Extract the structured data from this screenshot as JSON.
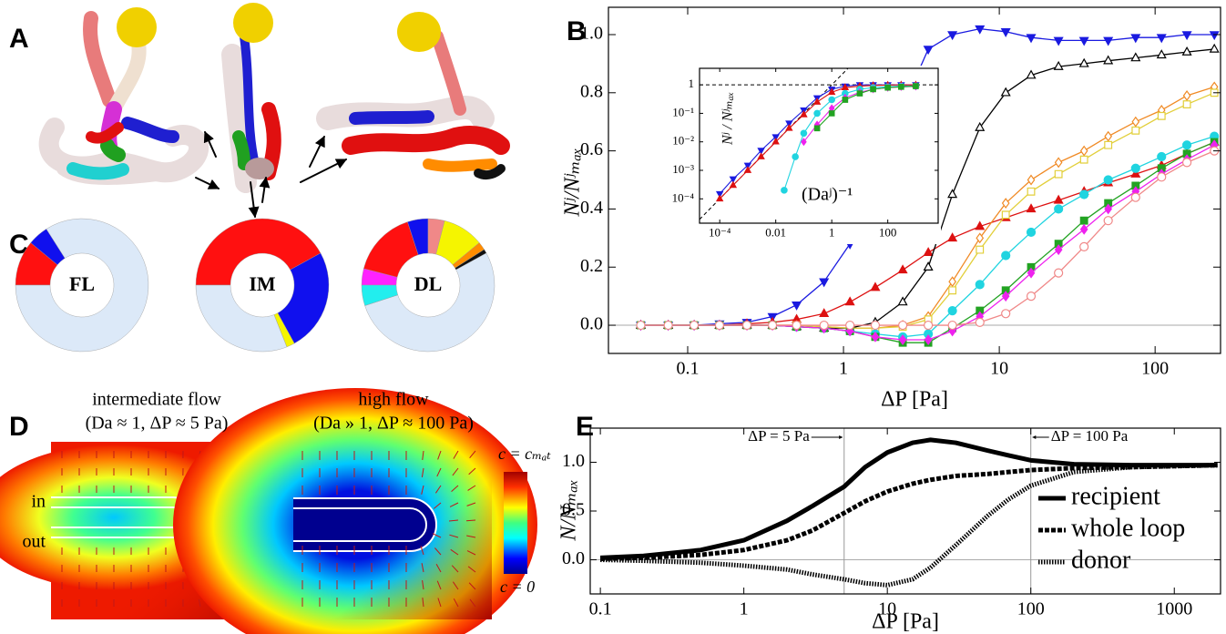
{
  "panel_labels": [
    "A",
    "B",
    "C",
    "D",
    "E"
  ],
  "chart_data": [
    {
      "type": "line",
      "xlabel": "ΔP [Pa]",
      "ylabel": "Nʲ/Nʲₘₐₓ",
      "xlog": true,
      "xlim": [
        0.031,
        263
      ],
      "xticks": [
        0.1,
        1,
        10,
        100
      ],
      "ylim": [
        -0.097,
        1.094
      ],
      "yticks": [
        {
          "value": 0,
          "label": "0.0"
        },
        {
          "value": 0.2,
          "label": "0.2"
        },
        {
          "value": 0.4,
          "label": "0.4"
        },
        {
          "value": 0.6,
          "label": "0.6"
        },
        {
          "value": 0.8,
          "label": "0.8"
        },
        {
          "value": 1,
          "label": "1.0"
        }
      ],
      "zero_line": true,
      "x": [
        0.05,
        0.075,
        0.11,
        0.16,
        0.24,
        0.35,
        0.5,
        0.75,
        1.1,
        1.6,
        2.4,
        3.5,
        5,
        7.5,
        11,
        16,
        24,
        35,
        50,
        75,
        110,
        160,
        240
      ],
      "series": [
        {
          "color": "#1a1ae0",
          "marker": "tri-down",
          "filled": true,
          "values": [
            0,
            0,
            0,
            0.005,
            0.01,
            0.03,
            0.07,
            0.15,
            0.28,
            0.5,
            0.75,
            0.95,
            1.0,
            1.02,
            1.01,
            0.99,
            0.98,
            0.98,
            0.98,
            0.99,
            0.99,
            1.0,
            1.0
          ]
        },
        {
          "color": "#dd1111",
          "marker": "tri-up",
          "filled": true,
          "values": [
            0,
            0,
            0,
            0,
            0.005,
            0.01,
            0.02,
            0.04,
            0.08,
            0.13,
            0.19,
            0.25,
            0.3,
            0.34,
            0.37,
            0.4,
            0.43,
            0.46,
            0.49,
            0.52,
            0.55,
            0.59,
            0.63
          ]
        },
        {
          "color": "#000000",
          "marker": "tri-up",
          "filled": false,
          "values": [
            0,
            0,
            0,
            0,
            0,
            0,
            -0.005,
            -0.01,
            -0.01,
            0.01,
            0.08,
            0.2,
            0.45,
            0.68,
            0.8,
            0.86,
            0.89,
            0.9,
            0.91,
            0.92,
            0.93,
            0.94,
            0.95
          ]
        },
        {
          "color": "#f08a24",
          "marker": "diamond",
          "filled": false,
          "values": [
            0,
            0,
            0,
            0,
            0,
            0,
            0,
            -0.005,
            -0.01,
            -0.01,
            0,
            0.03,
            0.15,
            0.3,
            0.42,
            0.5,
            0.56,
            0.6,
            0.65,
            0.7,
            0.74,
            0.79,
            0.82
          ]
        },
        {
          "color": "#e2cf3a",
          "marker": "square",
          "filled": false,
          "values": [
            0,
            0,
            0,
            0,
            0,
            0,
            0,
            -0.005,
            -0.01,
            -0.01,
            -0.005,
            0.02,
            0.12,
            0.26,
            0.38,
            0.46,
            0.52,
            0.57,
            0.62,
            0.67,
            0.72,
            0.76,
            0.8
          ]
        },
        {
          "color": "#20d4e0",
          "marker": "circle",
          "filled": true,
          "values": [
            0,
            0,
            0,
            0,
            0,
            0,
            -0.005,
            -0.01,
            -0.02,
            -0.03,
            -0.04,
            -0.03,
            0.05,
            0.14,
            0.24,
            0.32,
            0.4,
            0.45,
            0.5,
            0.54,
            0.58,
            0.62,
            0.65
          ]
        },
        {
          "color": "#22a322",
          "marker": "square",
          "filled": true,
          "values": [
            0,
            0,
            0,
            0,
            0,
            0,
            -0.005,
            -0.01,
            -0.02,
            -0.04,
            -0.06,
            -0.06,
            -0.01,
            0.05,
            0.12,
            0.2,
            0.28,
            0.36,
            0.42,
            0.48,
            0.54,
            0.59,
            0.63
          ]
        },
        {
          "color": "#ee22ee",
          "marker": "diamond",
          "filled": true,
          "values": [
            0,
            0,
            0,
            0,
            0,
            0,
            -0.005,
            -0.01,
            -0.02,
            -0.04,
            -0.05,
            -0.05,
            -0.02,
            0.03,
            0.1,
            0.18,
            0.26,
            0.33,
            0.4,
            0.46,
            0.52,
            0.57,
            0.62
          ]
        },
        {
          "color": "#f08888",
          "marker": "circle",
          "filled": false,
          "values": [
            0,
            0,
            0,
            0,
            0,
            0,
            0,
            0,
            0,
            0,
            0,
            0,
            0,
            0.01,
            0.04,
            0.1,
            0.18,
            0.27,
            0.36,
            0.44,
            0.51,
            0.56,
            0.6
          ]
        }
      ]
    },
    {
      "type": "line",
      "ylabel": "Nʲ / Nʲₘₐₓ",
      "annotation": "(Daʲ)⁻¹",
      "xlog": true,
      "ylog": true,
      "xlim": [
        1.9e-05,
        6300
      ],
      "xticks": [
        {
          "value": 0.0001,
          "label": "10⁻⁴"
        },
        0.01,
        1,
        100
      ],
      "ylim": [
        1.4e-05,
        3.8
      ],
      "yticks": [
        {
          "value": 0.0001,
          "label": "10⁻⁴"
        },
        {
          "value": 0.001,
          "label": "10⁻³"
        },
        {
          "value": 0.01,
          "label": "10⁻²"
        },
        {
          "value": 0.1,
          "label": "10⁻¹"
        },
        1
      ],
      "top_tick_dashed": true,
      "unity_diagonal": true,
      "series": [
        {
          "color": "#1a1ae0",
          "marker": "tri-down",
          "filled": true,
          "x": [
            0.0001,
            0.0003,
            0.001,
            0.003,
            0.01,
            0.03,
            0.1,
            0.3,
            1,
            3,
            10,
            30,
            100,
            300,
            1000
          ],
          "values": [
            0.00015,
            0.0005,
            0.0015,
            0.005,
            0.015,
            0.045,
            0.13,
            0.35,
            0.7,
            0.9,
            1,
            1,
            1,
            1,
            1
          ]
        },
        {
          "color": "#dd1111",
          "marker": "tri-up",
          "filled": true,
          "x": [
            0.0001,
            0.0003,
            0.001,
            0.003,
            0.01,
            0.03,
            0.1,
            0.3,
            1,
            3,
            10,
            30,
            100,
            300,
            1000
          ],
          "values": [
            0.0001,
            0.0003,
            0.001,
            0.003,
            0.01,
            0.03,
            0.09,
            0.25,
            0.55,
            0.8,
            0.9,
            0.95,
            0.98,
            1,
            1
          ]
        },
        {
          "color": "#20d4e0",
          "marker": "circle",
          "filled": true,
          "x": [
            0.02,
            0.05,
            0.1,
            0.3,
            1,
            3,
            10,
            30,
            100,
            300,
            1000
          ],
          "values": [
            0.0002,
            0.003,
            0.02,
            0.1,
            0.3,
            0.5,
            0.7,
            0.8,
            0.85,
            0.9,
            0.9
          ]
        },
        {
          "color": "#ee22ee",
          "marker": "diamond",
          "filled": true,
          "x": [
            0.1,
            0.3,
            1,
            3,
            10,
            30,
            100,
            300,
            1000
          ],
          "values": [
            0.01,
            0.04,
            0.15,
            0.35,
            0.55,
            0.7,
            0.8,
            0.85,
            0.88
          ]
        },
        {
          "color": "#22a322",
          "marker": "square",
          "filled": true,
          "x": [
            0.3,
            1,
            3,
            10,
            30,
            100,
            300,
            1000
          ],
          "values": [
            0.03,
            0.1,
            0.3,
            0.5,
            0.7,
            0.8,
            0.85,
            0.9
          ]
        }
      ]
    },
    {
      "type": "pie",
      "title": "FL",
      "values": [
        11,
        5,
        84
      ],
      "colors": [
        "#ff1010",
        "#1010ee",
        "#dce9f8"
      ]
    },
    {
      "type": "pie",
      "title": "IM",
      "values": [
        42,
        25,
        2,
        31
      ],
      "colors": [
        "#ff1010",
        "#1010ee",
        "#f5f500",
        "#dce9f8"
      ]
    },
    {
      "type": "pie",
      "title": "DL",
      "values": [
        4,
        16,
        5,
        4,
        10,
        2,
        1,
        53,
        5
      ],
      "colors": [
        "#ff22ff",
        "#ff1010",
        "#1010ee",
        "#f08888",
        "#f5f500",
        "#ff8c00",
        "#111111",
        "#dce9f8",
        "#22eeee"
      ]
    },
    {
      "type": "line",
      "xlabel": "ΔP  [Pa]",
      "ylabel": "N/Nₘₐₓ",
      "xlog": true,
      "xlim": [
        0.085,
        2100
      ],
      "xticks": [
        0.1,
        1,
        10,
        100,
        1000
      ],
      "ylim": [
        -0.35,
        1.35
      ],
      "yticks": [
        {
          "value": 0,
          "label": "0.0"
        },
        {
          "value": 0.5,
          "label": "0.5"
        },
        {
          "value": 1,
          "label": "1.0"
        }
      ],
      "zero_line": true,
      "legend": "lower right",
      "vlines": [
        {
          "value": 5,
          "label": "ΔP = 5 Pa"
        },
        {
          "value": 100,
          "label": "ΔP = 100 Pa"
        }
      ],
      "x": [
        0.1,
        0.2,
        0.5,
        1,
        2,
        3,
        5,
        7,
        10,
        15,
        20,
        30,
        50,
        70,
        100,
        200,
        500,
        1000,
        2000
      ],
      "series": [
        {
          "name": "recipient",
          "color": "#000000",
          "dash": "solid",
          "values": [
            0.02,
            0.04,
            0.1,
            0.2,
            0.4,
            0.55,
            0.75,
            0.95,
            1.1,
            1.2,
            1.23,
            1.2,
            1.12,
            1.07,
            1.02,
            0.98,
            0.97,
            0.97,
            0.97
          ]
        },
        {
          "name": "whole loop",
          "color": "#000000",
          "dash": "dashed",
          "values": [
            0.01,
            0.02,
            0.05,
            0.1,
            0.2,
            0.3,
            0.48,
            0.6,
            0.7,
            0.78,
            0.82,
            0.86,
            0.88,
            0.9,
            0.92,
            0.94,
            0.95,
            0.96,
            0.97
          ]
        },
        {
          "name": "donor",
          "color": "#000000",
          "dash": "dotted",
          "values": [
            0,
            -0.01,
            -0.03,
            -0.06,
            -0.1,
            -0.15,
            -0.2,
            -0.24,
            -0.26,
            -0.2,
            -0.08,
            0.15,
            0.45,
            0.62,
            0.76,
            0.9,
            0.95,
            0.96,
            0.97
          ]
        }
      ]
    }
  ],
  "panel_d": {
    "left_title": [
      "intermediate flow",
      "(Da ≈ 1, ΔP ≈ 5 Pa)"
    ],
    "right_title": [
      "high flow",
      "(Da » 1, ΔP ≈ 100 Pa)"
    ],
    "inlet": "in",
    "outlet": "out",
    "colorbar_top": "c = cₘₐₜ",
    "colorbar_bottom": "c = 0"
  }
}
